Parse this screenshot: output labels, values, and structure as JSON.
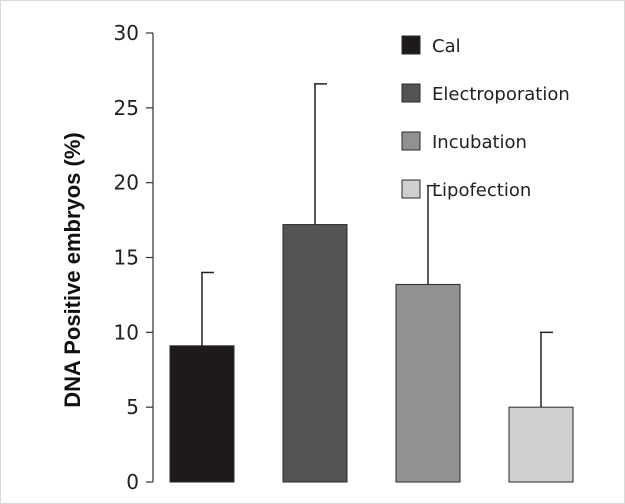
{
  "chart_data": {
    "type": "bar",
    "title": "",
    "xlabel": "",
    "ylabel": "DNA Positive embryos (%)",
    "ylim": [
      0,
      30
    ],
    "yticks": [
      0,
      5,
      10,
      15,
      20,
      25,
      30
    ],
    "grid": false,
    "legend_position": "top-right",
    "series": [
      {
        "name": "Cal",
        "value": 9.1,
        "error": 4.9,
        "color": "#1e1a1b"
      },
      {
        "name": "Electroporation",
        "value": 17.2,
        "error": 9.4,
        "color": "#545454"
      },
      {
        "name": "Incubation",
        "value": 13.2,
        "error": 6.6,
        "color": "#919191"
      },
      {
        "name": "Lipofection",
        "value": 5.0,
        "error": 5.0,
        "color": "#cfcfcf"
      }
    ]
  }
}
